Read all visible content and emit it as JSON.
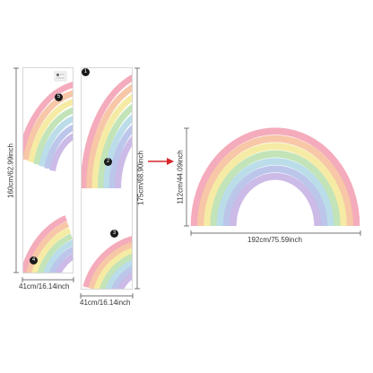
{
  "sheet1": {
    "height_label": "160cm/62.99inch",
    "width_label": "41cm/16.14inch",
    "badge_top": "5",
    "badge_bottom": "4"
  },
  "sheet2": {
    "height_label": "175cm/68.90inch",
    "width_label": "41cm/16.14inch",
    "badge_top": "1",
    "badge_mid": "2",
    "badge_bottom": "3"
  },
  "assembled": {
    "height_label": "112cm/44.09inch",
    "width_label": "192cm/75.59inch"
  },
  "colors": {
    "arrow": "#d9262b",
    "bands": [
      "#f3a6b7",
      "#f7c4a2",
      "#f6eaa0",
      "#bfe3b4",
      "#b7dbe8",
      "#b8c3ea",
      "#c9b6e6"
    ]
  }
}
